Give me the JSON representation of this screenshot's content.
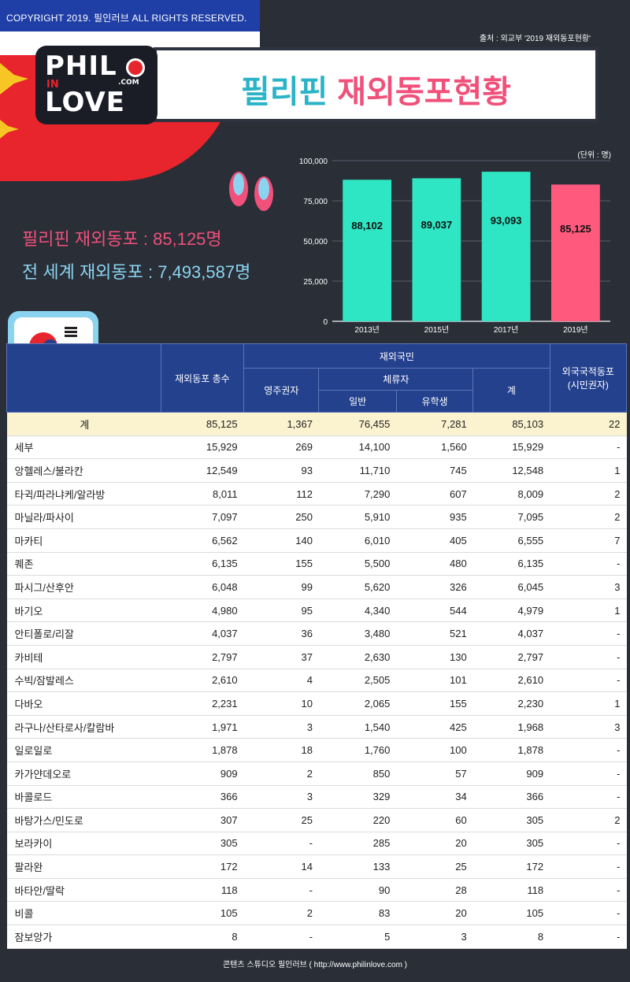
{
  "copyright": "COPYRIGHT 2019. 필인러브  ALL RIGHTS RESERVED.",
  "source": "출처 : 외교부 '2019 재외동포현황'",
  "logo": {
    "line1": "PHIL",
    "in": "IN",
    "line2": "LOVE",
    "com": ".COM"
  },
  "title": {
    "part1": "필리핀",
    "part2": "재외동포현황"
  },
  "summary": {
    "philippines": "필리핀 재외동포 : 85,125명",
    "world": "전 세계 재외동포 : 7,493,587명"
  },
  "colors": {
    "teal": "#2ee6c4",
    "pink": "#ff5a7e",
    "header_blue": "#24418e",
    "total_row": "#fbf3cf"
  },
  "chart_data": {
    "type": "bar",
    "unit": "(단위 : 명)",
    "categories": [
      "2013년",
      "2015년",
      "2017년",
      "2019년"
    ],
    "values": [
      88102,
      89037,
      93093,
      85125
    ],
    "value_labels": [
      "88,102",
      "89,037",
      "93,093",
      "85,125"
    ],
    "ylim": [
      0,
      100000
    ],
    "yticks": [
      0,
      25000,
      50000,
      75000,
      100000
    ],
    "ytick_labels": [
      "0",
      "25,000",
      "50,000",
      "75,000",
      "100,000"
    ],
    "bar_colors": [
      "#2ee6c4",
      "#2ee6c4",
      "#2ee6c4",
      "#ff5a7e"
    ],
    "grid": true
  },
  "table": {
    "headers": {
      "total": "재외동포 총수",
      "citizens": "재외국민",
      "permanent": "영주권자",
      "sojourner": "체류자",
      "general": "일반",
      "student": "유학생",
      "subtotal": "계",
      "foreign": "외국국적동포",
      "foreign_sub": "(시민권자)"
    },
    "rows": [
      [
        "계",
        "85,125",
        "1,367",
        "76,455",
        "7,281",
        "85,103",
        "22"
      ],
      [
        "세부",
        "15,929",
        "269",
        "14,100",
        "1,560",
        "15,929",
        "-"
      ],
      [
        "앙헬레스/불라칸",
        "12,549",
        "93",
        "11,710",
        "745",
        "12,548",
        "1"
      ],
      [
        "타귁/파라냐케/알라방",
        "8,011",
        "112",
        "7,290",
        "607",
        "8,009",
        "2"
      ],
      [
        "마닐라/파사이",
        "7,097",
        "250",
        "5,910",
        "935",
        "7,095",
        "2"
      ],
      [
        "마카티",
        "6,562",
        "140",
        "6,010",
        "405",
        "6,555",
        "7"
      ],
      [
        "퀘존",
        "6,135",
        "155",
        "5,500",
        "480",
        "6,135",
        "-"
      ],
      [
        "파시그/산후안",
        "6,048",
        "99",
        "5,620",
        "326",
        "6,045",
        "3"
      ],
      [
        "바기오",
        "4,980",
        "95",
        "4,340",
        "544",
        "4,979",
        "1"
      ],
      [
        "안티폴로/리잘",
        "4,037",
        "36",
        "3,480",
        "521",
        "4,037",
        "-"
      ],
      [
        "카비테",
        "2,797",
        "37",
        "2,630",
        "130",
        "2,797",
        "-"
      ],
      [
        "수빅/잠발레스",
        "2,610",
        "4",
        "2,505",
        "101",
        "2,610",
        "-"
      ],
      [
        "다바오",
        "2,231",
        "10",
        "2,065",
        "155",
        "2,230",
        "1"
      ],
      [
        "라구나/산타로사/칼람바",
        "1,971",
        "3",
        "1,540",
        "425",
        "1,968",
        "3"
      ],
      [
        "일로일로",
        "1,878",
        "18",
        "1,760",
        "100",
        "1,878",
        "-"
      ],
      [
        "카가얀데오로",
        "909",
        "2",
        "850",
        "57",
        "909",
        "-"
      ],
      [
        "바콜로드",
        "366",
        "3",
        "329",
        "34",
        "366",
        "-"
      ],
      [
        "바탕가스/민도로",
        "307",
        "25",
        "220",
        "60",
        "305",
        "2"
      ],
      [
        "보라카이",
        "305",
        "-",
        "285",
        "20",
        "305",
        "-"
      ],
      [
        "팔라완",
        "172",
        "14",
        "133",
        "25",
        "172",
        "-"
      ],
      [
        "바타안/딸락",
        "118",
        "-",
        "90",
        "28",
        "118",
        "-"
      ],
      [
        "비콜",
        "105",
        "2",
        "83",
        "20",
        "105",
        "-"
      ],
      [
        "잠보앙가",
        "8",
        "-",
        "5",
        "3",
        "8",
        "-"
      ]
    ]
  },
  "footer": "콘텐츠 스튜디오 필인러브 ( http://www.philinlove.com )"
}
